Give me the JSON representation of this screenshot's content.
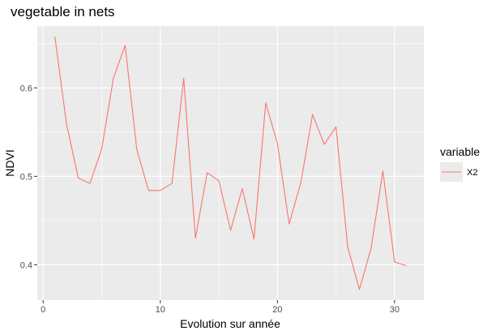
{
  "chart_data": {
    "type": "line",
    "title": "vegetable in nets",
    "xlabel": "Evolution sur année",
    "ylabel": "NDVI",
    "xlim": [
      -0.5,
      32.5
    ],
    "ylim": [
      0.36,
      0.67
    ],
    "x_ticks": [
      0,
      10,
      20,
      30
    ],
    "x_minor_ticks": [
      5,
      15,
      25
    ],
    "y_ticks": [
      0.4,
      0.5,
      0.6
    ],
    "y_tick_labels": [
      "0.4",
      "0.5",
      "0.6"
    ],
    "y_minor_ticks": [
      0.45,
      0.55,
      0.65
    ],
    "grid": true,
    "legend_position": "right",
    "legend_title": "variable",
    "series": [
      {
        "name": "X2",
        "color": "#F8766D",
        "x": [
          1,
          2,
          3,
          4,
          5,
          6,
          7,
          8,
          9,
          10,
          11,
          12,
          13,
          14,
          15,
          16,
          17,
          18,
          19,
          20,
          21,
          22,
          23,
          24,
          25,
          26,
          27,
          28,
          29,
          30,
          31
        ],
        "y": [
          0.658,
          0.559,
          0.498,
          0.492,
          0.531,
          0.611,
          0.648,
          0.53,
          0.484,
          0.484,
          0.492,
          0.611,
          0.43,
          0.504,
          0.495,
          0.439,
          0.486,
          0.429,
          0.583,
          0.537,
          0.446,
          0.493,
          0.57,
          0.536,
          0.556,
          0.42,
          0.372,
          0.419,
          0.506,
          0.403,
          0.399
        ]
      }
    ]
  },
  "colors": {
    "panel_background": "#EBEBEB",
    "grid_major": "#FFFFFF",
    "line": "#F8766D"
  }
}
